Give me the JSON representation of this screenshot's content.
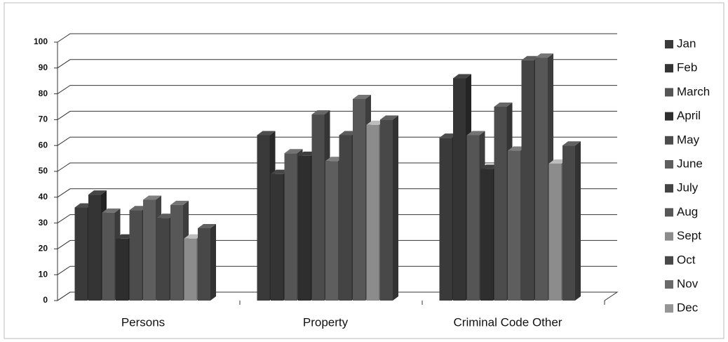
{
  "chart_data": {
    "type": "bar3d",
    "categories": [
      "Persons",
      "Property",
      "Criminal Code Other"
    ],
    "series": [
      {
        "name": "Jan",
        "color": "#3a3a3a",
        "values": [
          36,
          64,
          63
        ]
      },
      {
        "name": "Feb",
        "color": "#343434",
        "values": [
          41,
          49,
          86
        ]
      },
      {
        "name": "March",
        "color": "#555555",
        "values": [
          34,
          57,
          64
        ]
      },
      {
        "name": "April",
        "color": "#2e2e2e",
        "values": [
          24,
          56,
          51
        ]
      },
      {
        "name": "May",
        "color": "#4c4c4c",
        "values": [
          35,
          72,
          75
        ]
      },
      {
        "name": "June",
        "color": "#5e5e5e",
        "values": [
          39,
          54,
          58
        ]
      },
      {
        "name": "July",
        "color": "#444444",
        "values": [
          32,
          64,
          93
        ]
      },
      {
        "name": "Aug",
        "color": "#575757",
        "values": [
          37,
          78,
          94
        ]
      },
      {
        "name": "Sept",
        "color": "#8c8c8c",
        "values": [
          24,
          68,
          53
        ]
      },
      {
        "name": "Oct",
        "color": "#484848",
        "values": [
          28,
          70,
          60
        ]
      },
      {
        "name": "Nov",
        "color": "#6a6a6a",
        "values": [
          null,
          null,
          null
        ]
      },
      {
        "name": "Dec",
        "color": "#959595",
        "values": [
          null,
          null,
          null
        ]
      }
    ],
    "ylim": [
      0,
      100
    ],
    "yticks": [
      0,
      10,
      20,
      30,
      40,
      50,
      60,
      70,
      80,
      90,
      100
    ],
    "grid": true,
    "legend": "right"
  }
}
